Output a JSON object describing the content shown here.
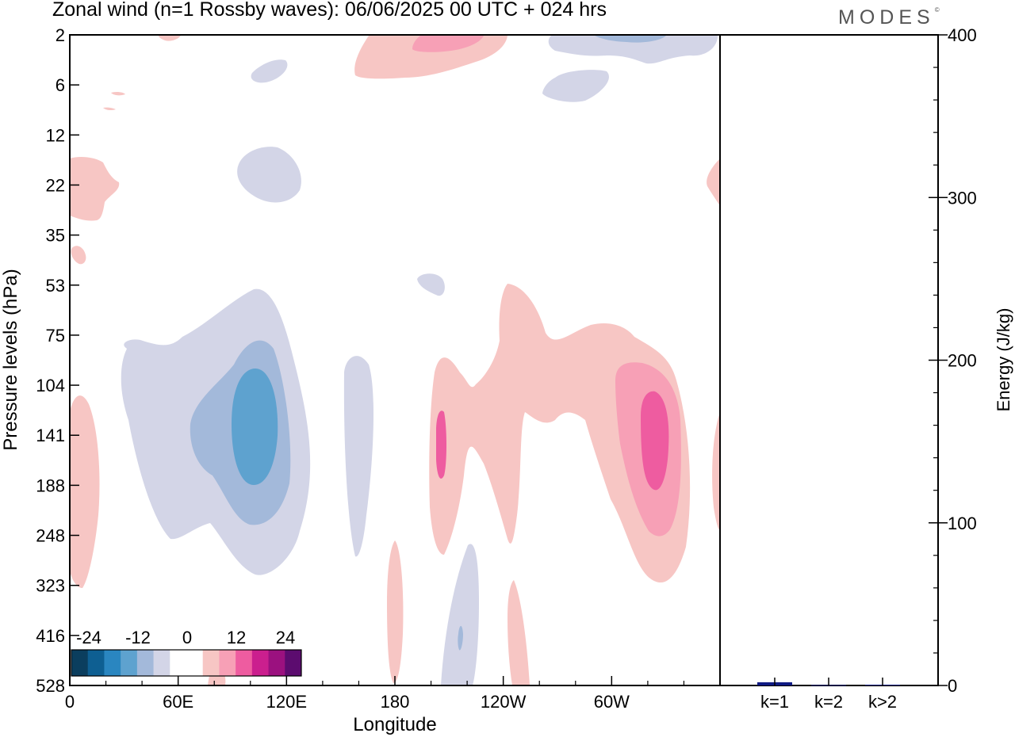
{
  "header": {
    "title": "Zonal wind (n=1 Rossby waves):  06/06/2025  00 UTC  + 024 hrs",
    "brand": "MODES",
    "brand_mark": "©"
  },
  "chart_data": [
    {
      "type": "heatmap",
      "title": "Zonal wind (n=1 Rossby waves):  06/06/2025  00 UTC  + 024 hrs",
      "xlabel": "Longitude",
      "ylabel": "Pressure levels (hPa)",
      "x_ticks": [
        "0",
        "60E",
        "120E",
        "180",
        "120W",
        "60W"
      ],
      "x_tick_degrees_east": [
        0,
        60,
        120,
        180,
        240,
        300
      ],
      "xlim_degrees_east": [
        0,
        360
      ],
      "y_ticks": [
        "2",
        "6",
        "12",
        "22",
        "35",
        "53",
        "75",
        "104",
        "141",
        "188",
        "248",
        "323",
        "416",
        "528"
      ],
      "y_scale": "categorical model levels, 2 hPa at top, 528 hPa at bottom",
      "colorbar": {
        "labels": [
          "-24",
          "-12",
          "0",
          "12",
          "24"
        ],
        "colors": [
          "#0b3e5e",
          "#0e5f92",
          "#2a86c0",
          "#5ea2cf",
          "#a3b9da",
          "#d3d5e7",
          "#ffffff",
          "#ffffff",
          "#f7c6c4",
          "#f7a0b6",
          "#ee5ca0",
          "#cb1f8e",
          "#9b117f",
          "#5c0c6f"
        ],
        "placement": "bottom-left"
      },
      "features": [
        {
          "sign": "negative",
          "peak_level": "magnitude -12 to -16",
          "lon_deg_east": 103,
          "level_range_hPa": [
            75,
            323
          ]
        },
        {
          "sign": "negative",
          "peak_level": "magnitude 0 to -4",
          "lon_deg_east": 163,
          "level_range_hPa": [
            104,
            300
          ]
        },
        {
          "sign": "negative",
          "peak_level": "magnitude 0 to -4",
          "lon_deg_east": 201,
          "level_range_hPa": [
            300,
            528
          ]
        },
        {
          "sign": "positive",
          "peak_level": "magnitude 12 to 16",
          "lon_deg_east": 292,
          "level_range_hPa": [
            75,
            323
          ]
        },
        {
          "sign": "positive",
          "peak_level": "magnitude 8 to 12",
          "lon_deg_east": 197,
          "level_range_hPa": [
            53,
            280
          ]
        },
        {
          "sign": "positive",
          "peak_level": "magnitude 4 to 8",
          "lon_deg_east": 200,
          "level_range_hPa": [
            2,
            6
          ]
        },
        {
          "sign": "negative",
          "peak_level": "magnitude -4 to -8",
          "lon_deg_east": 262,
          "level_range_hPa": [
            2,
            6
          ]
        }
      ]
    },
    {
      "type": "bar",
      "categories": [
        "k=1",
        "k=2",
        "k>2"
      ],
      "values": [
        2,
        0.3,
        0.5
      ],
      "ylabel": "Energy (J/kg)",
      "ylim": [
        0,
        400
      ],
      "y_ticks": [
        "0",
        "100",
        "200",
        "300",
        "400"
      ],
      "colors": [
        "#0f1a82",
        "#0f1a82",
        "#0f1a82"
      ]
    }
  ]
}
